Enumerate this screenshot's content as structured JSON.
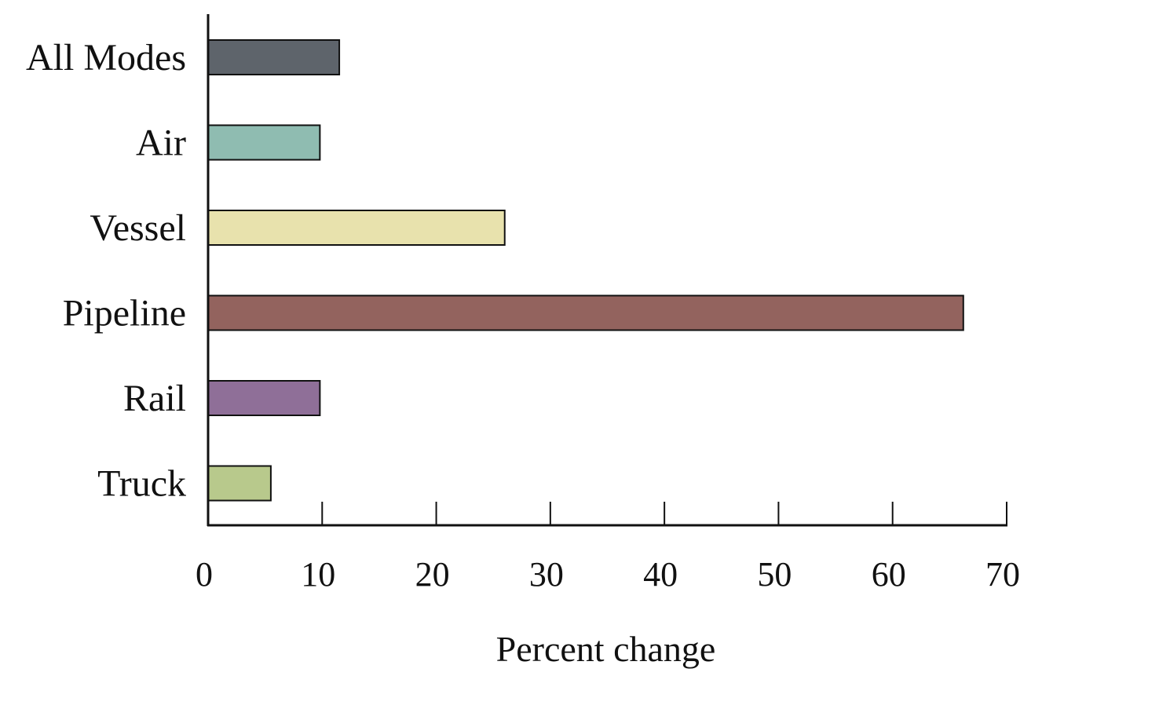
{
  "chart_data": {
    "type": "bar",
    "orientation": "horizontal",
    "title": "",
    "xlabel": "Percent change",
    "ylabel": "",
    "categories": [
      "All Modes",
      "Air",
      "Vessel",
      "Pipeline",
      "Rail",
      "Truck"
    ],
    "values": [
      11.5,
      9.8,
      26,
      66.2,
      9.8,
      5.5
    ],
    "colors": [
      "#5e646b",
      "#8fbcb1",
      "#e8e2ad",
      "#93635e",
      "#8f6f98",
      "#b8c98c"
    ],
    "xlim": [
      0,
      70
    ],
    "xticks": [
      "0",
      "10",
      "20",
      "30",
      "40",
      "50",
      "60",
      "70"
    ],
    "grid": false,
    "legend": "none"
  }
}
